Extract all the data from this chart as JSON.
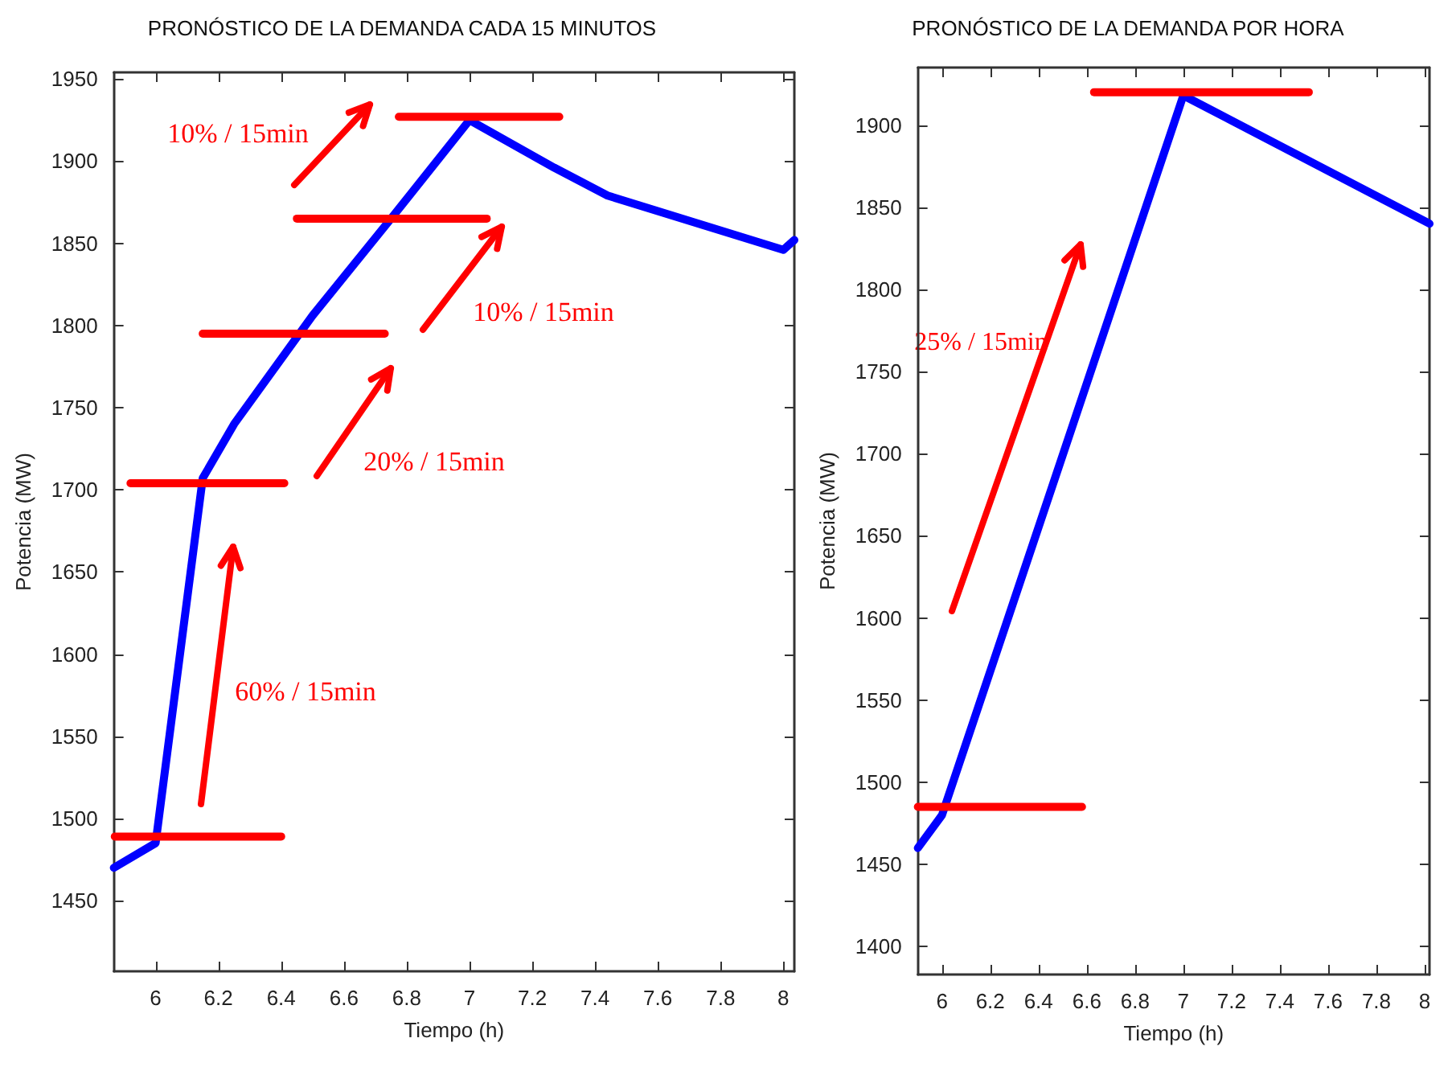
{
  "chart_data": [
    {
      "type": "line",
      "title": "PRONÓSTICO DE LA DEMANDA CADA 15 MINUTOS",
      "xlabel": "Tiempo (h)",
      "ylabel": "Potencia (MW)",
      "xlim": [
        5.867,
        8.035
      ],
      "ylim": [
        1407,
        1954
      ],
      "xticks": [
        6,
        6.2,
        6.4,
        6.6,
        6.8,
        7,
        7.2,
        7.4,
        7.6,
        7.8,
        8
      ],
      "yticks": [
        1450,
        1500,
        1550,
        1600,
        1650,
        1700,
        1750,
        1800,
        1850,
        1900,
        1950
      ],
      "grid": false,
      "marker": "none",
      "series": [
        {
          "color": "#0000ff",
          "x": [
            5.867,
            6.0,
            6.15,
            6.25,
            6.5,
            6.75,
            7.0,
            7.27,
            7.44,
            8.0,
            8.035
          ],
          "values": [
            1470,
            1485,
            1707,
            1740,
            1806,
            1865,
            1925,
            1896,
            1879,
            1846,
            1852
          ]
        },
        {
          "color": "#ff0000",
          "x": [
            5.87,
            6.4
          ],
          "values": [
            1489,
            1489
          ]
        },
        {
          "color": "#ff0000",
          "x": [
            5.92,
            6.41
          ],
          "values": [
            1704,
            1704
          ]
        },
        {
          "color": "#ff0000",
          "x": [
            6.15,
            6.73
          ],
          "values": [
            1795,
            1795
          ]
        },
        {
          "color": "#ff0000",
          "x": [
            6.45,
            7.055
          ],
          "values": [
            1865,
            1865
          ]
        },
        {
          "color": "#ff0000",
          "x": [
            6.775,
            7.286
          ],
          "values": [
            1927,
            1927
          ]
        }
      ],
      "annotations": [
        "10% / 15min",
        "10% / 15min",
        "20% / 15min",
        "60% / 15min"
      ]
    },
    {
      "type": "line",
      "title": "PRONÓSTICO DE LA DEMANDA POR HORA",
      "xlabel": "Tiempo (h)",
      "ylabel": "Potencia (MW)",
      "xlim": [
        5.9,
        8.02
      ],
      "ylim": [
        1383,
        1935
      ],
      "xticks": [
        6,
        6.2,
        6.4,
        6.6,
        6.8,
        7,
        7.2,
        7.4,
        7.6,
        7.8,
        8
      ],
      "yticks": [
        1400,
        1450,
        1500,
        1550,
        1600,
        1650,
        1700,
        1750,
        1800,
        1850,
        1900
      ],
      "grid": false,
      "marker": "none",
      "series": [
        {
          "color": "#0000ff",
          "x": [
            5.9,
            6.0,
            7.0,
            8.02
          ],
          "values": [
            1460,
            1480,
            1918,
            1840
          ]
        },
        {
          "color": "#ff0000",
          "x": [
            5.9,
            6.58
          ],
          "values": [
            1485,
            1485
          ]
        },
        {
          "color": "#ff0000",
          "x": [
            6.63,
            7.52
          ],
          "values": [
            1920,
            1920
          ]
        }
      ],
      "annotations": [
        "25% / 15min"
      ]
    }
  ]
}
